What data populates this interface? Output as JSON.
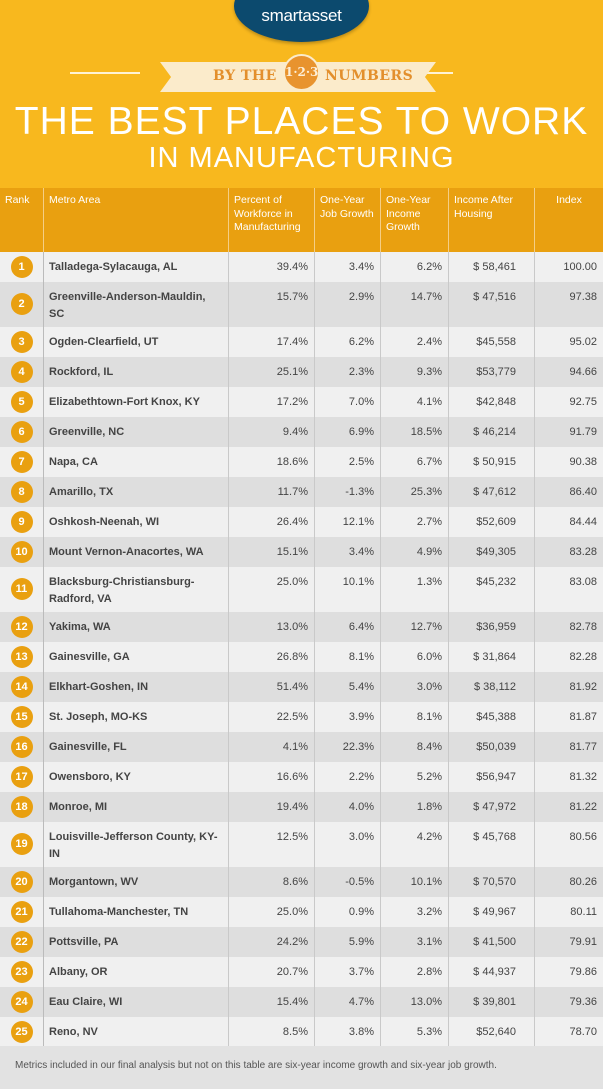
{
  "brand": {
    "logo": "smartasset",
    "colors": {
      "yellow": "#F8B81E",
      "orange": "#E9A010",
      "navy": "#0C4A6E"
    }
  },
  "banner": {
    "left": "BY THE",
    "badge": "1·2·3",
    "right": "NUMBERS"
  },
  "title": {
    "line1": "THE BEST PLACES TO WORK",
    "line2": "IN MANUFACTURING"
  },
  "table": {
    "headers": [
      "Rank",
      "Metro Area",
      "Percent of Workforce in Manufacturing",
      "One-Year Job Growth",
      "One-Year Income Growth",
      "Income After Housing",
      "Index"
    ],
    "rows": [
      [
        "1",
        "Talladega-Sylacauga, AL",
        "39.4%",
        "3.4%",
        "6.2%",
        "$ 58,461",
        "100.00"
      ],
      [
        "2",
        "Greenville-Anderson-Mauldin, SC",
        "15.7%",
        "2.9%",
        "14.7%",
        "$ 47,516",
        "97.38"
      ],
      [
        "3",
        "Ogden-Clearfield, UT",
        "17.4%",
        "6.2%",
        "2.4%",
        "$45,558",
        "95.02"
      ],
      [
        "4",
        "Rockford, IL",
        "25.1%",
        "2.3%",
        "9.3%",
        "$53,779",
        "94.66"
      ],
      [
        "5",
        "Elizabethtown-Fort Knox, KY",
        "17.2%",
        "7.0%",
        "4.1%",
        "$42,848",
        "92.75"
      ],
      [
        "6",
        "Greenville, NC",
        "9.4%",
        "6.9%",
        "18.5%",
        "$ 46,214",
        "91.79"
      ],
      [
        "7",
        "Napa, CA",
        "18.6%",
        "2.5%",
        "6.7%",
        "$ 50,915",
        "90.38"
      ],
      [
        "8",
        "Amarillo, TX",
        "11.7%",
        "-1.3%",
        "25.3%",
        "$ 47,612",
        "86.40"
      ],
      [
        "9",
        "Oshkosh-Neenah, WI",
        "26.4%",
        "12.1%",
        "2.7%",
        "$52,609",
        "84.44"
      ],
      [
        "10",
        "Mount Vernon-Anacortes, WA",
        "15.1%",
        "3.4%",
        "4.9%",
        "$49,305",
        "83.28"
      ],
      [
        "11",
        "Blacksburg-Christiansburg-Radford, VA",
        "25.0%",
        "10.1%",
        "1.3%",
        "$45,232",
        "83.08"
      ],
      [
        "12",
        "Yakima, WA",
        "13.0%",
        "6.4%",
        "12.7%",
        "$36,959",
        "82.78"
      ],
      [
        "13",
        "Gainesville, GA",
        "26.8%",
        "8.1%",
        "6.0%",
        "$ 31,864",
        "82.28"
      ],
      [
        "14",
        "Elkhart-Goshen, IN",
        "51.4%",
        "5.4%",
        "3.0%",
        "$ 38,112",
        "81.92"
      ],
      [
        "15",
        "St. Joseph, MO-KS",
        "22.5%",
        "3.9%",
        "8.1%",
        "$45,388",
        "81.87"
      ],
      [
        "16",
        "Gainesville, FL",
        "4.1%",
        "22.3%",
        "8.4%",
        "$50,039",
        "81.77"
      ],
      [
        "17",
        "Owensboro, KY",
        "16.6%",
        "2.2%",
        "5.2%",
        "$56,947",
        "81.32"
      ],
      [
        "18",
        "Monroe, MI",
        "19.4%",
        "4.0%",
        "1.8%",
        "$ 47,972",
        "81.22"
      ],
      [
        "19",
        "Louisville-Jefferson County, KY-IN",
        "12.5%",
        "3.0%",
        "4.2%",
        "$ 45,768",
        "80.56"
      ],
      [
        "20",
        "Morgantown, WV",
        "8.6%",
        "-0.5%",
        "10.1%",
        "$ 70,570",
        "80.26"
      ],
      [
        "21",
        "Tullahoma-Manchester, TN",
        "25.0%",
        "0.9%",
        "3.2%",
        "$ 49,967",
        "80.11"
      ],
      [
        "22",
        "Pottsville, PA",
        "24.2%",
        "5.9%",
        "3.1%",
        "$ 41,500",
        "79.91"
      ],
      [
        "23",
        "Albany, OR",
        "20.7%",
        "3.7%",
        "2.8%",
        "$ 44,937",
        "79.86"
      ],
      [
        "24",
        "Eau Claire, WI",
        "15.4%",
        "4.7%",
        "13.0%",
        "$ 39,801",
        "79.36"
      ],
      [
        "25",
        "Reno, NV",
        "8.5%",
        "3.8%",
        "5.3%",
        "$52,640",
        "78.70"
      ]
    ]
  },
  "footer": "Metrics included in our final analysis but not on this table are six-year income growth and six-year job growth."
}
